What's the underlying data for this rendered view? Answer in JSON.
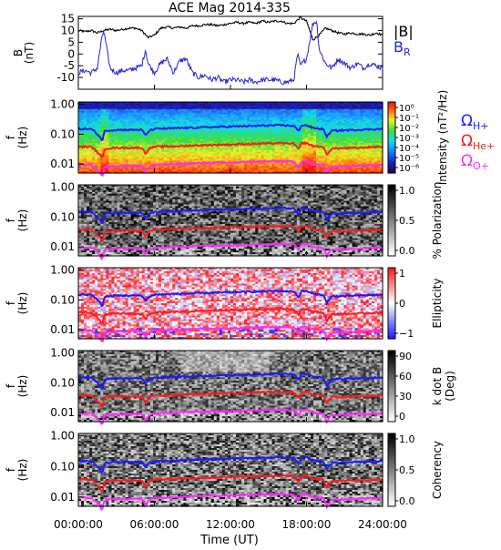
{
  "title": "ACE Mag 2014-335",
  "xlabel": "Time (UT)",
  "x_ticks": [
    "00:00:00",
    "06:00:00",
    "12:00:00",
    "18:00:00",
    "24:00:00"
  ],
  "x_range_hours": [
    0,
    24
  ],
  "colors": {
    "b_total": "#000000",
    "b_r": "#2222dd",
    "omega_h": "#1a1aff",
    "omega_he": "#ff1a1a",
    "omega_o": "#ff2aff"
  },
  "chart_data": [
    {
      "type": "line",
      "panel": "magnetic-field",
      "ylabel_top": "B",
      "ylabel_bottom": "(nT)",
      "ylim": [
        -15,
        16
      ],
      "y_ticks": [
        "15",
        "10",
        "5",
        "0",
        "-5",
        "-10"
      ],
      "y_tick_values": [
        15,
        10,
        5,
        0,
        -5,
        -10
      ],
      "series": [
        {
          "name": "|B|",
          "x": [
            0,
            0.5,
            1,
            1.5,
            2,
            2.5,
            3,
            3.5,
            4,
            4.5,
            5,
            5.5,
            6,
            6.5,
            7,
            7.5,
            8,
            8.5,
            9,
            9.5,
            10,
            10.5,
            11,
            11.5,
            12,
            12.5,
            13,
            13.5,
            14,
            14.5,
            15,
            15.5,
            16,
            16.5,
            17,
            17.5,
            18,
            18.5,
            19,
            19.5,
            20,
            20.5,
            21,
            21.5,
            22,
            22.5,
            23,
            23.5,
            24
          ],
          "y": [
            10,
            9.5,
            10,
            9,
            10,
            10.5,
            10,
            10.5,
            11,
            11,
            10,
            7,
            8,
            11,
            11.5,
            11,
            11.5,
            11,
            12,
            12,
            12.5,
            12.5,
            12,
            12.5,
            13,
            13.5,
            13,
            13.5,
            13,
            14,
            13.5,
            14,
            14,
            13,
            13,
            15.5,
            14,
            6,
            8,
            11,
            10,
            9,
            8.5,
            9,
            8.5,
            8.5,
            8,
            9,
            8
          ]
        },
        {
          "name": "B",
          "subscript": "R",
          "x": [
            0,
            0.5,
            1,
            1.5,
            1.8,
            2,
            2.5,
            3,
            3.5,
            4,
            4.5,
            5,
            5.3,
            5.5,
            6,
            6.5,
            7,
            7.5,
            8,
            8.5,
            9,
            9.5,
            10,
            10.5,
            11,
            11.5,
            12,
            12.5,
            13,
            13.5,
            14,
            14.5,
            15,
            15.5,
            16,
            16.5,
            17,
            17.3,
            17.5,
            18,
            18.5,
            18.8,
            19,
            19.5,
            20,
            20.5,
            21,
            21.5,
            22,
            22.5,
            23,
            23.5,
            24
          ],
          "y": [
            -8,
            -7,
            -8,
            -6,
            5,
            10,
            -6,
            -8,
            -7,
            -7,
            -6,
            -5,
            2,
            -4,
            -8,
            -4,
            -2,
            -8,
            -3,
            -2,
            -8,
            -10,
            -9,
            -11,
            -10,
            -12,
            -11,
            -11,
            -12,
            -11,
            -12,
            -11,
            -11,
            -11,
            -12,
            -12,
            -11,
            0,
            -5,
            -2,
            13,
            14,
            2,
            -4,
            -6,
            -2,
            -4,
            -6,
            -4,
            -6,
            -4,
            -5,
            -6
          ]
        }
      ]
    },
    {
      "type": "heatmap",
      "panel": "intensity",
      "ylabel_top": "f",
      "ylabel_bottom": "(Hz)",
      "colorbar_label": "Intensity (nT²/Hz)",
      "colorbar_ticks": [
        "10⁰",
        "10⁻¹",
        "10⁻²",
        "10⁻³",
        "10⁻⁴",
        "10⁻⁵",
        "10⁻⁶"
      ],
      "legend": [
        {
          "main": "Ω",
          "sub": "H+",
          "color": "#1a1aff"
        },
        {
          "main": "Ω",
          "sub": "He+",
          "color": "#ff1a1a"
        },
        {
          "main": "Ω",
          "sub": "O+",
          "color": "#ff2aff"
        }
      ]
    },
    {
      "type": "heatmap",
      "panel": "polarization",
      "ylabel_top": "f",
      "ylabel_bottom": "(Hz)",
      "colorbar_label": "% Polarization",
      "colorbar_ticks": [
        "1.0",
        "0.5",
        "0.0"
      ]
    },
    {
      "type": "heatmap",
      "panel": "ellipticity",
      "ylabel_top": "f",
      "ylabel_bottom": "(Hz)",
      "colorbar_label": "Ellipticity",
      "colorbar_ticks": [
        "1",
        "0",
        "−1"
      ]
    },
    {
      "type": "heatmap",
      "panel": "k-dot-b",
      "ylabel_top": "f",
      "ylabel_bottom": "(Hz)",
      "colorbar_label": "k dot B",
      "colorbar_label2": "(Deg)",
      "colorbar_ticks": [
        "90",
        "60",
        "30",
        "0"
      ]
    },
    {
      "type": "heatmap",
      "panel": "coherency",
      "ylabel_top": "f",
      "ylabel_bottom": "(Hz)",
      "colorbar_label": "Coherency",
      "colorbar_ticks": [
        "1.0",
        "0.5",
        "0.0"
      ]
    }
  ],
  "spectrogram_y_ticks": [
    "1.00",
    "0.10",
    "0.01"
  ],
  "spectrogram_y_tick_values": [
    1.0,
    0.1,
    0.01
  ],
  "spectrogram_ylim": [
    0.005,
    1.2
  ],
  "gyrofrequencies_hz": {
    "x": [
      0,
      1,
      1.9,
      2.1,
      3,
      4,
      5,
      5.3,
      5.6,
      6,
      8,
      10,
      12,
      14,
      16,
      17,
      17.4,
      17.6,
      18,
      18.5,
      19.3,
      19.6,
      20,
      22,
      24
    ],
    "H+": [
      0.15,
      0.15,
      0.06,
      0.13,
      0.14,
      0.14,
      0.14,
      0.09,
      0.13,
      0.15,
      0.16,
      0.17,
      0.18,
      0.19,
      0.2,
      0.19,
      0.12,
      0.2,
      0.2,
      0.16,
      0.15,
      0.08,
      0.13,
      0.14,
      0.15
    ],
    "He+": [
      0.038,
      0.038,
      0.015,
      0.033,
      0.035,
      0.035,
      0.035,
      0.022,
      0.033,
      0.038,
      0.04,
      0.043,
      0.045,
      0.048,
      0.05,
      0.048,
      0.03,
      0.05,
      0.05,
      0.04,
      0.038,
      0.02,
      0.033,
      0.035,
      0.038
    ],
    "O+": [
      0.0095,
      0.0095,
      0.0038,
      0.0082,
      0.0088,
      0.0088,
      0.0088,
      0.0055,
      0.0082,
      0.0095,
      0.01,
      0.011,
      0.011,
      0.012,
      0.0125,
      0.012,
      0.0075,
      0.0125,
      0.0125,
      0.01,
      0.0095,
      0.005,
      0.0082,
      0.0088,
      0.0095
    ]
  }
}
